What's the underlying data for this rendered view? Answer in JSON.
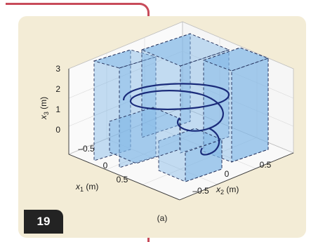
{
  "figure_badge": "19",
  "caption": "(a)",
  "chart_data": {
    "type": "3d-box-plot",
    "title": "",
    "axes": {
      "x1": {
        "label": "x1 (m)",
        "label_main": "x",
        "label_sub": "1",
        "label_unit": " (m)",
        "ticks": [
          "–0.5",
          "0",
          "0.5"
        ]
      },
      "x2": {
        "label": "x2 (m)",
        "label_main": "x",
        "label_sub": "2",
        "label_unit": " (m)",
        "ticks": [
          "–0.5",
          "0",
          "0.5"
        ]
      },
      "x3": {
        "label": "x3 (m)",
        "label_main": "x",
        "label_sub": "3",
        "label_unit": " (m)",
        "ticks": [
          "0",
          "1",
          "2",
          "3"
        ]
      }
    },
    "grid": true,
    "elements": [
      "translucent blue boxes with dashed edges",
      "helical trajectory curve"
    ],
    "colors": {
      "box_fill": "#7fb5e6",
      "box_edge": "#1e2a55",
      "curve": "#1a2b7a",
      "bg": "#f3ecd6"
    }
  }
}
